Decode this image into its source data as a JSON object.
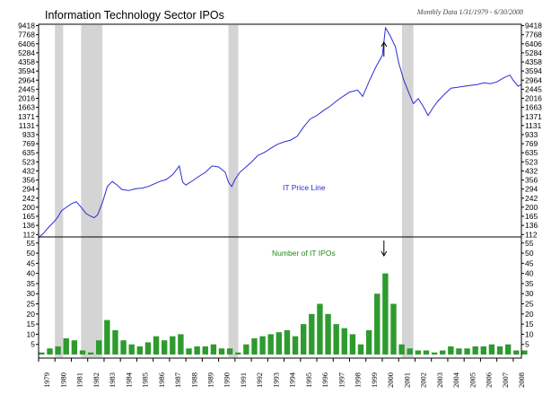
{
  "chart_data": {
    "type": "line+bar",
    "title": "Information Technology Sector IPOs",
    "subtitle": "Monthly Data 1/31/1979 - 6/30/2008",
    "price_axis": {
      "scale": "log",
      "tick_labels": [
        "9418",
        "7768",
        "6406",
        "5284",
        "4358",
        "3594",
        "2964",
        "2445",
        "2016",
        "1663",
        "1371",
        "1131",
        "933",
        "769",
        "635",
        "523",
        "432",
        "356",
        "294",
        "242",
        "200",
        "165",
        "136",
        "112"
      ]
    },
    "ipo_axis": {
      "ylim": [
        0,
        55
      ],
      "tick_labels": [
        "55",
        "50",
        "45",
        "40",
        "35",
        "30",
        "25",
        "20",
        "15",
        "10",
        "5"
      ]
    },
    "x_axis": {
      "range": [
        1979.0,
        2008.5
      ],
      "tick_labels": [
        "1979",
        "1980",
        "1981",
        "1982",
        "1983",
        "1984",
        "1985",
        "1986",
        "1987",
        "1988",
        "1989",
        "1990",
        "1991",
        "1992",
        "1993",
        "1994",
        "1995",
        "1996",
        "1997",
        "1998",
        "1999",
        "2000",
        "2001",
        "2002",
        "2003",
        "2004",
        "2005",
        "2006",
        "2007",
        "2008"
      ]
    },
    "recessions": [
      [
        1980.0,
        1980.5
      ],
      [
        1981.6,
        1982.9
      ],
      [
        1990.6,
        1991.2
      ],
      [
        2001.2,
        2001.9
      ]
    ],
    "series": [
      {
        "name": "IT Price Line",
        "color": "#2b2bd6",
        "x": [
          1979.0,
          1979.3,
          1979.6,
          1980.0,
          1980.2,
          1980.4,
          1980.7,
          1981.0,
          1981.3,
          1981.6,
          1981.9,
          1982.2,
          1982.4,
          1982.6,
          1982.9,
          1983.2,
          1983.5,
          1983.8,
          1984.1,
          1984.5,
          1984.9,
          1985.3,
          1985.7,
          1986.0,
          1986.4,
          1986.8,
          1987.2,
          1987.6,
          1987.8,
          1988.0,
          1988.4,
          1988.8,
          1989.2,
          1989.6,
          1990.0,
          1990.4,
          1990.6,
          1990.8,
          1991.0,
          1991.3,
          1991.6,
          1992.0,
          1992.4,
          1992.8,
          1993.2,
          1993.6,
          1994.0,
          1994.4,
          1994.8,
          1995.2,
          1995.6,
          1996.0,
          1996.4,
          1996.8,
          1997.2,
          1997.6,
          1998.0,
          1998.5,
          1998.8,
          1999.2,
          1999.6,
          2000.0,
          2000.2,
          2000.5,
          2000.8,
          2001.0,
          2001.3,
          2001.6,
          2001.9,
          2002.2,
          2002.5,
          2002.8,
          2003.1,
          2003.4,
          2003.8,
          2004.2,
          2004.6,
          2005.0,
          2005.4,
          2005.8,
          2006.2,
          2006.6,
          2007.0,
          2007.4,
          2007.8,
          2008.0,
          2008.3,
          2008.5
        ],
        "values": [
          105,
          115,
          130,
          150,
          165,
          185,
          200,
          215,
          225,
          200,
          175,
          165,
          160,
          170,
          220,
          310,
          345,
          320,
          290,
          285,
          295,
          300,
          310,
          325,
          345,
          360,
          400,
          480,
          340,
          320,
          350,
          385,
          420,
          480,
          470,
          420,
          340,
          310,
          360,
          420,
          460,
          520,
          600,
          640,
          700,
          760,
          800,
          830,
          900,
          1100,
          1300,
          1400,
          1550,
          1700,
          1900,
          2100,
          2300,
          2400,
          2100,
          2900,
          3900,
          5000,
          9000,
          7500,
          6000,
          4300,
          3000,
          2300,
          1800,
          2000,
          1700,
          1400,
          1650,
          1900,
          2200,
          2500,
          2550,
          2600,
          2650,
          2700,
          2800,
          2750,
          2850,
          3100,
          3300,
          2950,
          2600,
          2700
        ]
      },
      {
        "name": "Number of IT IPOs",
        "color": "#2e9b2e",
        "x": [
          1979.0,
          1979.5,
          1980.0,
          1980.5,
          1981.0,
          1981.5,
          1982.0,
          1982.5,
          1983.0,
          1983.5,
          1984.0,
          1984.5,
          1985.0,
          1985.5,
          1986.0,
          1986.5,
          1987.0,
          1987.5,
          1988.0,
          1988.5,
          1989.0,
          1989.5,
          1990.0,
          1990.5,
          1991.0,
          1991.5,
          1992.0,
          1992.5,
          1993.0,
          1993.5,
          1994.0,
          1994.5,
          1995.0,
          1995.5,
          1996.0,
          1996.5,
          1997.0,
          1997.5,
          1998.0,
          1998.5,
          1999.0,
          1999.5,
          2000.0,
          2000.5,
          2001.0,
          2001.5,
          2002.0,
          2002.5,
          2003.0,
          2003.5,
          2004.0,
          2004.5,
          2005.0,
          2005.5,
          2006.0,
          2006.5,
          2007.0,
          2007.5,
          2008.0,
          2008.5
        ],
        "values": [
          1,
          3,
          4,
          8,
          7,
          2,
          1,
          7,
          17,
          12,
          7,
          5,
          4,
          6,
          9,
          7,
          9,
          10,
          3,
          4,
          4,
          5,
          3,
          3,
          1,
          5,
          8,
          9,
          10,
          11,
          12,
          9,
          15,
          20,
          25,
          20,
          15,
          13,
          10,
          5,
          12,
          30,
          40,
          25,
          5,
          3,
          2,
          2,
          1,
          2,
          4,
          3,
          3,
          4,
          4,
          5,
          4,
          5,
          2,
          2
        ]
      }
    ],
    "annotations": [
      "IT Price Line",
      "Number of IT IPOs"
    ],
    "arrows": {
      "price_peak_x": 2000.1,
      "ipo_peak_x": 2000.1
    }
  }
}
